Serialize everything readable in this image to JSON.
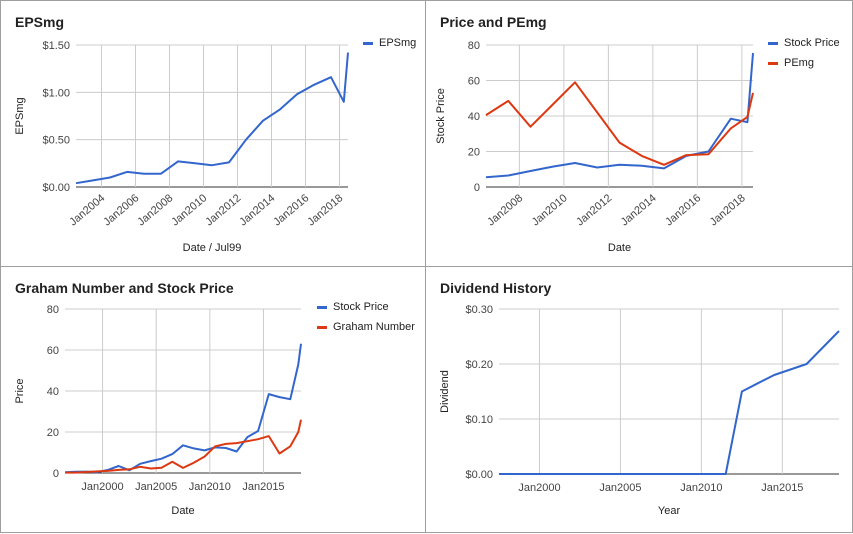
{
  "chart_data": [
    {
      "type": "line",
      "title": "EPSmg",
      "xlabel": "Date / Jul99",
      "ylabel": "EPSmg",
      "y_ticks": [
        "$0.00",
        "$0.50",
        "$1.00",
        "$1.50"
      ],
      "x_ticks": [
        "Jan2004",
        "Jan2006",
        "Jan2008",
        "Jan2010",
        "Jan2012",
        "Jan2014",
        "Jan2016",
        "Jan2018"
      ],
      "ylim": [
        0,
        1.5
      ],
      "grid": true,
      "legend_position": "top-right",
      "series": [
        {
          "name": "EPSmg",
          "color": "#3366cc",
          "x": [
            "2002-07",
            "2003-07",
            "2004-07",
            "2005-07",
            "2006-07",
            "2007-07",
            "2008-07",
            "2009-07",
            "2010-07",
            "2011-07",
            "2012-07",
            "2013-07",
            "2014-07",
            "2015-07",
            "2016-07",
            "2017-07",
            "2018-04",
            "2018-07"
          ],
          "values": [
            0.04,
            0.07,
            0.1,
            0.16,
            0.14,
            0.14,
            0.27,
            0.25,
            0.23,
            0.26,
            0.5,
            0.7,
            0.82,
            0.98,
            1.08,
            1.16,
            0.9,
            1.42
          ]
        }
      ]
    },
    {
      "type": "line",
      "title": "Price and PEmg",
      "xlabel": "Date",
      "ylabel": "Stock Price",
      "y_ticks": [
        "0",
        "20",
        "40",
        "60",
        "80"
      ],
      "x_ticks": [
        "Jan2008",
        "Jan2010",
        "Jan2012",
        "Jan2014",
        "Jan2016",
        "Jan2018"
      ],
      "ylim": [
        0,
        80
      ],
      "grid": true,
      "legend_position": "top-right",
      "series": [
        {
          "name": "Stock Price",
          "color": "#3366cc",
          "x": [
            "2006-07",
            "2007-07",
            "2008-07",
            "2009-07",
            "2010-07",
            "2011-07",
            "2012-07",
            "2013-07",
            "2014-07",
            "2015-07",
            "2016-07",
            "2017-07",
            "2018-04",
            "2018-07"
          ],
          "values": [
            5.5,
            6.5,
            9,
            11.5,
            13.5,
            11,
            12.5,
            12,
            10.5,
            17.5,
            20,
            38.5,
            36.5,
            75.5
          ]
        },
        {
          "name": "PEmg",
          "color": "#dc3912",
          "x": [
            "2006-07",
            "2007-07",
            "2008-07",
            "2009-07",
            "2010-07",
            "2011-07",
            "2012-07",
            "2013-07",
            "2014-07",
            "2015-07",
            "2016-07",
            "2017-07",
            "2018-04",
            "2018-07"
          ],
          "values": [
            40.5,
            48.5,
            34,
            46.5,
            59,
            42,
            25,
            17.5,
            12.5,
            18,
            18.5,
            33,
            39.5,
            53
          ]
        }
      ]
    },
    {
      "type": "line",
      "title": "Graham Number and Stock Price",
      "xlabel": "Date",
      "ylabel": "Price",
      "y_ticks": [
        "0",
        "20",
        "40",
        "60",
        "80"
      ],
      "x_ticks": [
        "Jan2000",
        "Jan2005",
        "Jan2010",
        "Jan2015"
      ],
      "ylim": [
        0,
        80
      ],
      "grid": true,
      "legend_position": "top-right",
      "series": [
        {
          "name": "Stock Price",
          "color": "#3366cc",
          "x": [
            "1996-07",
            "1997-07",
            "1998-07",
            "1999-07",
            "2000-07",
            "2001-07",
            "2002-07",
            "2003-07",
            "2004-07",
            "2005-07",
            "2006-07",
            "2007-07",
            "2008-07",
            "2009-07",
            "2010-07",
            "2011-07",
            "2012-07",
            "2013-07",
            "2014-07",
            "2015-07",
            "2016-07",
            "2017-07",
            "2018-04",
            "2018-07"
          ],
          "values": [
            0.4,
            0.6,
            0.7,
            0.4,
            1.5,
            3.4,
            1.3,
            4.5,
            5.8,
            7,
            9.2,
            13.5,
            12,
            11,
            12.5,
            12.2,
            10.5,
            17.5,
            20.5,
            38.5,
            37,
            36,
            53,
            63
          ]
        },
        {
          "name": "Graham Number",
          "color": "#dc3912",
          "x": [
            "1996-07",
            "1997-07",
            "1998-07",
            "1999-07",
            "2000-07",
            "2001-07",
            "2002-07",
            "2003-07",
            "2004-07",
            "2005-07",
            "2006-07",
            "2007-07",
            "2008-07",
            "2009-07",
            "2010-07",
            "2011-07",
            "2012-07",
            "2013-07",
            "2014-07",
            "2015-07",
            "2016-07",
            "2017-07",
            "2018-04",
            "2018-07"
          ],
          "values": [
            0.2,
            0.2,
            0.5,
            0.8,
            1,
            1.5,
            1.8,
            3,
            2.2,
            2.6,
            5.5,
            2.5,
            5,
            8,
            13,
            14.2,
            14.6,
            15.5,
            16.5,
            18,
            9.5,
            13,
            20,
            26
          ]
        }
      ]
    },
    {
      "type": "line",
      "title": "Dividend History",
      "xlabel": "Year",
      "ylabel": "Dividend",
      "y_ticks": [
        "$0.00",
        "$0.10",
        "$0.20",
        "$0.30"
      ],
      "x_ticks": [
        "Jan2000",
        "Jan2005",
        "Jan2010",
        "Jan2015"
      ],
      "ylim": [
        0,
        0.3
      ],
      "grid": true,
      "series": [
        {
          "name": "",
          "color": "#3366cc",
          "x": [
            "1997-07",
            "1998-07",
            "1999-07",
            "2000-07",
            "2001-07",
            "2002-07",
            "2003-07",
            "2004-07",
            "2005-07",
            "2006-07",
            "2007-07",
            "2008-07",
            "2009-07",
            "2010-07",
            "2011-07",
            "2012-07",
            "2013-07",
            "2014-07",
            "2015-07",
            "2016-07",
            "2017-07",
            "2018-07"
          ],
          "values": [
            0,
            0,
            0,
            0,
            0,
            0,
            0,
            0,
            0,
            0,
            0,
            0,
            0,
            0,
            0,
            0.15,
            0.165,
            0.18,
            0.19,
            0.2,
            0.23,
            0.26
          ]
        }
      ]
    }
  ]
}
